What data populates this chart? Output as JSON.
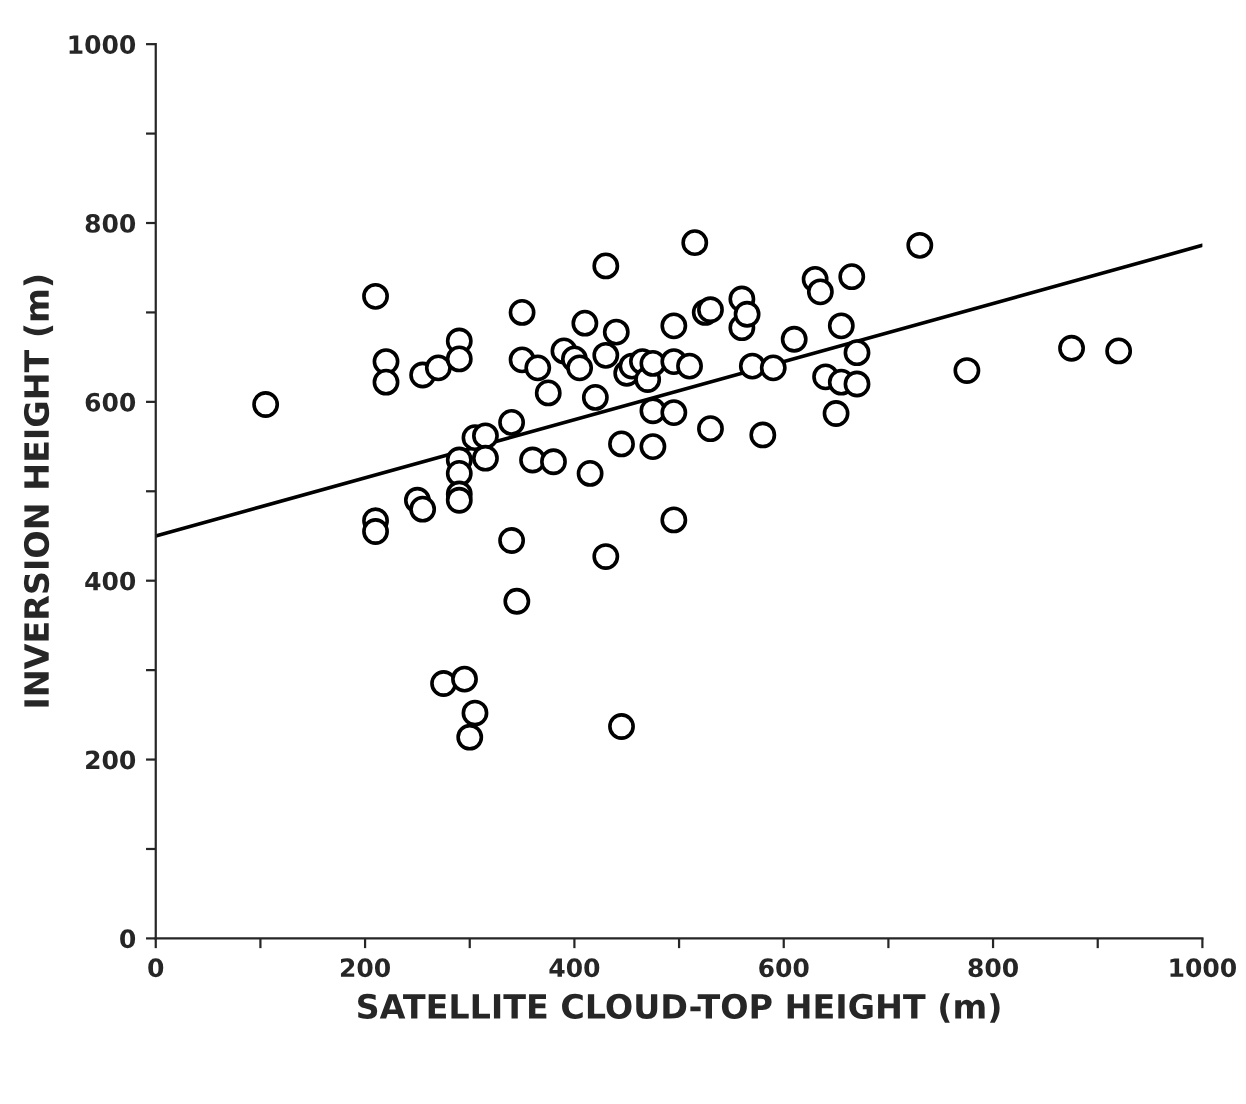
{
  "chart_data": {
    "type": "scatter",
    "xlabel": "SATELLITE CLOUD-TOP HEIGHT (m)",
    "ylabel": "INVERSION HEIGHT (m)",
    "grid": false,
    "xlim": [
      0,
      1000
    ],
    "ylim": [
      0,
      1000
    ],
    "xticks": [
      0,
      {
        "value": 100,
        "label": null
      },
      200,
      {
        "value": 300,
        "label": null
      },
      400,
      {
        "value": 500,
        "label": null
      },
      600,
      {
        "value": 700,
        "label": null
      },
      800,
      {
        "value": 900,
        "label": null
      },
      1000
    ],
    "yticks": [
      0,
      {
        "value": 100,
        "label": null
      },
      200,
      {
        "value": 300,
        "label": null
      },
      400,
      {
        "value": 500,
        "label": null
      },
      600,
      {
        "value": 700,
        "label": null
      },
      800,
      {
        "value": 900,
        "label": null
      },
      1000
    ],
    "series": [
      {
        "marker": "circle",
        "color": "#000000",
        "x": [
          105,
          210,
          210,
          210,
          220,
          220,
          250,
          255,
          255,
          270,
          275,
          290,
          290,
          290,
          290,
          290,
          290,
          295,
          300,
          305,
          305,
          315,
          315,
          340,
          340,
          345,
          350,
          350,
          360,
          365,
          375,
          380,
          390,
          400,
          405,
          410,
          415,
          420,
          430,
          430,
          430,
          440,
          445,
          445,
          450,
          455,
          465,
          470,
          475,
          475,
          475,
          495,
          495,
          495,
          495,
          510,
          515,
          525,
          530,
          530,
          560,
          560,
          565,
          570,
          580,
          590,
          610,
          630,
          635,
          640,
          650,
          655,
          655,
          665,
          670,
          670,
          730,
          775,
          875,
          920
        ],
        "values": [
          597,
          718,
          467,
          455,
          645,
          622,
          490,
          480,
          630,
          638,
          285,
          668,
          648,
          535,
          520,
          497,
          490,
          290,
          225,
          252,
          560,
          562,
          537,
          577,
          445,
          377,
          700,
          647,
          535,
          638,
          610,
          533,
          657,
          648,
          638,
          688,
          520,
          605,
          752,
          652,
          427,
          678,
          553,
          237,
          632,
          640,
          645,
          625,
          643,
          590,
          550,
          685,
          645,
          588,
          468,
          640,
          778,
          700,
          703,
          570,
          715,
          683,
          698,
          640,
          563,
          638,
          670,
          737,
          723,
          628,
          587,
          685,
          622,
          740,
          655,
          620,
          775,
          635,
          660,
          657
        ]
      },
      {
        "type": "line",
        "color": "#000000",
        "x": [
          0,
          1000
        ],
        "values": [
          450,
          775
        ]
      }
    ]
  }
}
